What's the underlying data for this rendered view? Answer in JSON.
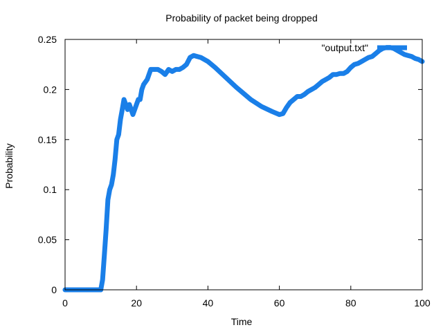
{
  "chart_data": {
    "type": "line",
    "title": "Probability of packet being dropped",
    "xlabel": "Time",
    "ylabel": "Probability",
    "xlim": [
      0,
      100
    ],
    "ylim": [
      0,
      0.25
    ],
    "xticks": [
      "0",
      "20",
      "40",
      "60",
      "80",
      "100"
    ],
    "yticks": [
      "0",
      "0.05",
      "0.1",
      "0.15",
      "0.2",
      "0.25"
    ],
    "grid": false,
    "legend_position": "top-right",
    "series": [
      {
        "name": "\"output.txt\"",
        "color": "#1a7fe8",
        "x": [
          0,
          2,
          4,
          6,
          8,
          10,
          10.5,
          11,
          11.5,
          12,
          12.5,
          13,
          13.5,
          14,
          14.5,
          15,
          15.5,
          16,
          16.5,
          17,
          17.5,
          18,
          18.5,
          19,
          19.5,
          20,
          20.5,
          21,
          21.5,
          22,
          23,
          24,
          25,
          26,
          27,
          28,
          29,
          30,
          31,
          32,
          33,
          34,
          35,
          36,
          38,
          40,
          42,
          45,
          48,
          50,
          52,
          55,
          58,
          60,
          61,
          62,
          63,
          64,
          65,
          66,
          67,
          68,
          69,
          70,
          71,
          72,
          73,
          74,
          75,
          76,
          77,
          78,
          79,
          80,
          81,
          82,
          83,
          84,
          85,
          86,
          87,
          88,
          89,
          90,
          91,
          92,
          93,
          94,
          95,
          96,
          97,
          98,
          99,
          100
        ],
        "y": [
          0,
          0,
          0,
          0,
          0,
          0,
          0.01,
          0.035,
          0.06,
          0.09,
          0.1,
          0.105,
          0.115,
          0.13,
          0.15,
          0.155,
          0.17,
          0.18,
          0.19,
          0.185,
          0.18,
          0.185,
          0.18,
          0.175,
          0.18,
          0.185,
          0.19,
          0.19,
          0.2,
          0.205,
          0.21,
          0.22,
          0.22,
          0.22,
          0.218,
          0.215,
          0.22,
          0.218,
          0.22,
          0.22,
          0.222,
          0.225,
          0.232,
          0.234,
          0.232,
          0.228,
          0.222,
          0.212,
          0.202,
          0.196,
          0.19,
          0.183,
          0.178,
          0.175,
          0.176,
          0.182,
          0.187,
          0.19,
          0.193,
          0.193,
          0.195,
          0.198,
          0.2,
          0.202,
          0.205,
          0.208,
          0.21,
          0.212,
          0.215,
          0.215,
          0.216,
          0.216,
          0.218,
          0.222,
          0.225,
          0.226,
          0.228,
          0.23,
          0.232,
          0.233,
          0.236,
          0.239,
          0.241,
          0.242,
          0.242,
          0.241,
          0.239,
          0.237,
          0.235,
          0.234,
          0.233,
          0.231,
          0.23,
          0.228
        ]
      }
    ]
  }
}
